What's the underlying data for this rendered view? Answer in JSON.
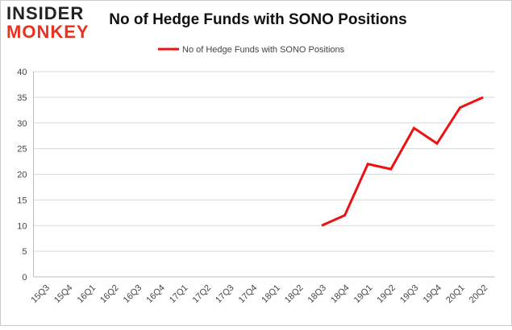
{
  "logo": {
    "line1": "INSIDER",
    "line2": "MONKEY"
  },
  "chart_data": {
    "type": "line",
    "title": "No of Hedge Funds with SONO Positions",
    "categories": [
      "15Q3",
      "15Q4",
      "16Q1",
      "16Q2",
      "16Q3",
      "16Q4",
      "17Q1",
      "17Q2",
      "17Q3",
      "17Q4",
      "18Q1",
      "18Q2",
      "18Q3",
      "18Q4",
      "19Q1",
      "19Q2",
      "19Q3",
      "19Q4",
      "20Q1",
      "20Q2"
    ],
    "series": [
      {
        "name": "No of Hedge Funds with SONO Positions",
        "color": "#ee1111",
        "values": [
          null,
          null,
          null,
          null,
          null,
          null,
          null,
          null,
          null,
          null,
          null,
          null,
          10,
          12,
          22,
          21,
          29,
          26,
          33,
          35
        ]
      }
    ],
    "ylim": [
      0,
      40
    ],
    "yticks": [
      0,
      5,
      10,
      15,
      20,
      25,
      30,
      35,
      40
    ],
    "grid": true,
    "legend": "top"
  }
}
